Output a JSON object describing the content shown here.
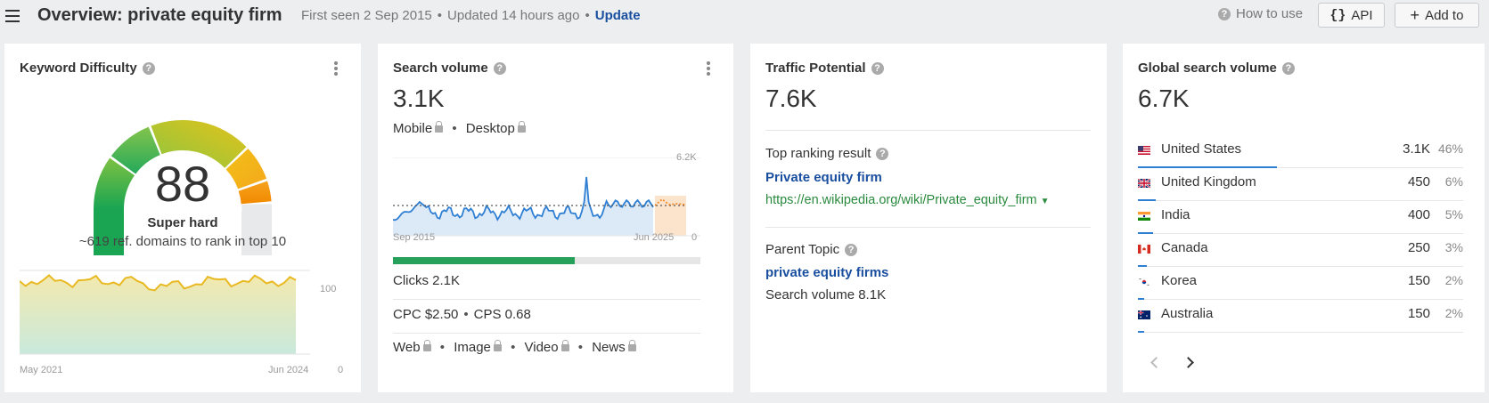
{
  "header": {
    "title": "Overview: private equity firm",
    "first_seen": "First seen 2 Sep 2015",
    "updated": "Updated 14 hours ago",
    "update_link": "Update",
    "how_to_use": "How to use",
    "api_label": "API",
    "add_label": "Add to"
  },
  "kd": {
    "title": "Keyword Difficulty",
    "value": "88",
    "label": "Super hard",
    "sub": "~619 ref. domains to rank in top 10",
    "x_start": "May 2021",
    "x_end": "Jun 2024",
    "y_top": "100",
    "y_bottom": "0"
  },
  "sv": {
    "title": "Search volume",
    "value": "3.1K",
    "mobile": "Mobile",
    "desktop": "Desktop",
    "y_top": "6.2K",
    "y_bottom": "0",
    "x_start": "Sep 2015",
    "x_end": "Jun 2025",
    "clicks": "Clicks 2.1K",
    "clicks_fraction": 0.59,
    "cpc": "CPC $2.50",
    "cps": "CPS 0.68",
    "web": "Web",
    "image": "Image",
    "video": "Video",
    "news": "News"
  },
  "tp": {
    "title": "Traffic Potential",
    "value": "7.6K",
    "top_result_label": "Top ranking result",
    "top_result_title": "Private equity firm",
    "top_result_url": "https://en.wikipedia.org/wiki/Private_equity_firm",
    "parent_topic_label": "Parent Topic",
    "parent_topic": "private equity firms",
    "parent_volume": "Search volume 8.1K"
  },
  "gsv": {
    "title": "Global search volume",
    "value": "6.7K",
    "countries": [
      {
        "name": "United States",
        "volume": "3.1K",
        "pct": "46%",
        "share": 0.46,
        "flag": "us-flag"
      },
      {
        "name": "United Kingdom",
        "volume": "450",
        "pct": "6%",
        "share": 0.06,
        "flag": "uk-flag"
      },
      {
        "name": "India",
        "volume": "400",
        "pct": "5%",
        "share": 0.05,
        "flag": "india-flag"
      },
      {
        "name": "Canada",
        "volume": "250",
        "pct": "3%",
        "share": 0.03,
        "flag": "canada-flag"
      },
      {
        "name": "Korea",
        "volume": "150",
        "pct": "2%",
        "share": 0.02,
        "flag": "korea-flag"
      },
      {
        "name": "Australia",
        "volume": "150",
        "pct": "2%",
        "share": 0.02,
        "flag": "australia-flag"
      }
    ]
  },
  "colors": {
    "accent": "#1a4fa0",
    "line": "#2f7fd3",
    "clicks_bar": "#27a05a",
    "kd_line": "#e8b923"
  }
}
